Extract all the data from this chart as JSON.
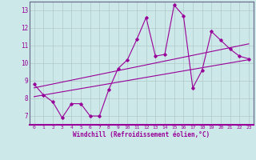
{
  "xlabel": "Windchill (Refroidissement éolien,°C)",
  "background_color": "#cce8e8",
  "grid_color": "#b0c8c8",
  "line_color": "#990099",
  "border_color": "#666688",
  "xlim": [
    -0.5,
    23.5
  ],
  "ylim": [
    6.5,
    13.5
  ],
  "xticks": [
    0,
    1,
    2,
    3,
    4,
    5,
    6,
    7,
    8,
    9,
    10,
    11,
    12,
    13,
    14,
    15,
    16,
    17,
    18,
    19,
    20,
    21,
    22,
    23
  ],
  "yticks": [
    7,
    8,
    9,
    10,
    11,
    12,
    13
  ],
  "series1_x": [
    0,
    1,
    2,
    3,
    4,
    5,
    6,
    7,
    8,
    9,
    10,
    11,
    12,
    13,
    14,
    15,
    16,
    17,
    18,
    19,
    20,
    21,
    22,
    23
  ],
  "series1_y": [
    8.8,
    8.2,
    7.8,
    6.9,
    7.7,
    7.7,
    7.0,
    7.0,
    8.5,
    9.7,
    10.2,
    11.35,
    12.6,
    10.4,
    10.5,
    13.3,
    12.7,
    8.6,
    9.6,
    11.8,
    11.3,
    10.8,
    10.4,
    10.25
  ],
  "reg_line1_x": [
    0,
    23
  ],
  "reg_line1_y": [
    8.1,
    10.2
  ],
  "reg_line2_x": [
    0,
    23
  ],
  "reg_line2_y": [
    8.6,
    11.1
  ]
}
